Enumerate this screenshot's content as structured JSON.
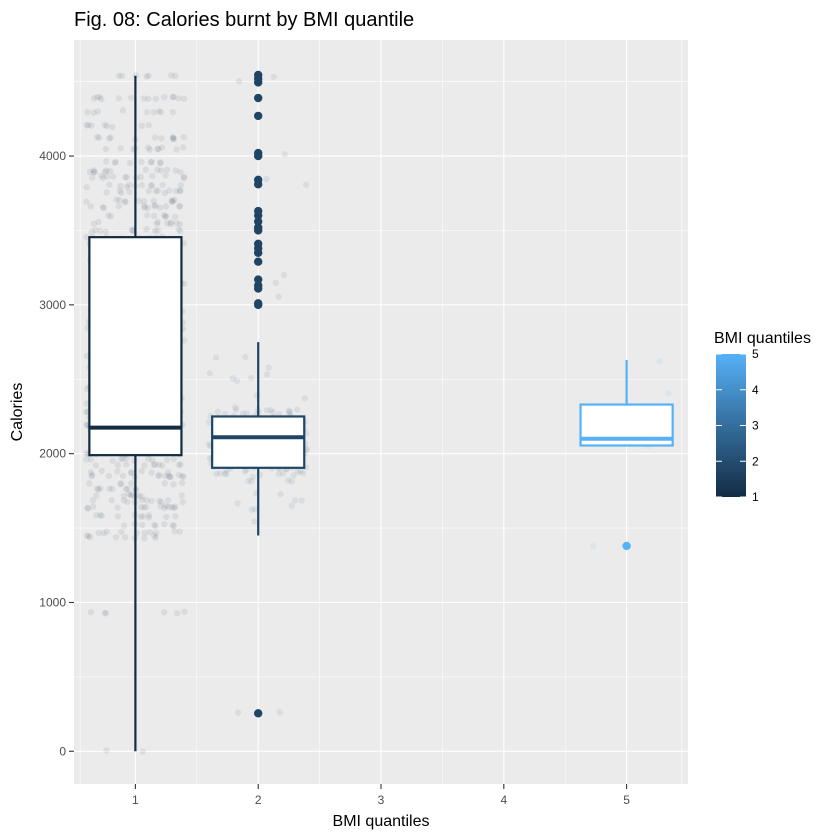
{
  "chart_data": {
    "type": "boxplot",
    "title": "Fig. 08: Calories burnt by BMI quantile",
    "xlabel": "BMI quantiles",
    "ylabel": "Calories",
    "x_ticks": [
      "1",
      "2",
      "3",
      "4",
      "5"
    ],
    "y_ticks": [
      0,
      1000,
      2000,
      3000,
      4000
    ],
    "xlim": [
      0.5,
      5.5
    ],
    "ylim": [
      -220,
      4780
    ],
    "grid": true,
    "legend": {
      "title": "BMI quantiles",
      "placement": "right",
      "labels": [
        "5",
        "4",
        "3",
        "2",
        "1"
      ],
      "gradient_low": "#132B43",
      "gradient_high": "#56B1F7"
    },
    "boxes": [
      {
        "group": 1,
        "color": "#132B43",
        "q1": 1990,
        "median": 2175,
        "q3": 3455,
        "whisker_low": 0,
        "whisker_high": 4540,
        "outliers": []
      },
      {
        "group": 2,
        "color": "#1F4565",
        "q1": 1905,
        "median": 2110,
        "q3": 2250,
        "whisker_low": 1450,
        "whisker_high": 2750,
        "outliers": [
          4545,
          4520,
          4495,
          4390,
          4270,
          4020,
          4000,
          3840,
          3810,
          3630,
          3600,
          3560,
          3520,
          3500,
          3410,
          3380,
          3350,
          3290,
          3170,
          3130,
          3110,
          3010,
          3000,
          255
        ]
      },
      {
        "group": 5,
        "color": "#56B1F7",
        "q1": 2055,
        "median": 2100,
        "q3": 2330,
        "whisker_low": 2055,
        "whisker_high": 2630,
        "outliers": [
          1380
        ]
      }
    ]
  }
}
